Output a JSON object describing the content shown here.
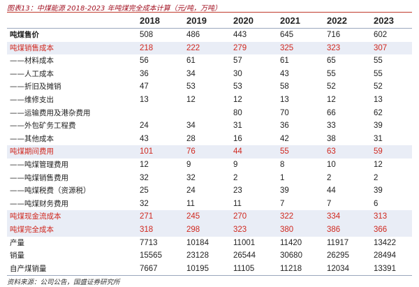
{
  "title": "图表13：中煤能源 2018-2023 年吨煤完全成本计算（元/吨，万吨）",
  "source": "资料来源：公司公告，国盛证券研究所",
  "header": {
    "label": "",
    "years": [
      "2018",
      "2019",
      "2020",
      "2021",
      "2022",
      "2023"
    ]
  },
  "rows": [
    {
      "label": "吨煤售价",
      "values": [
        "508",
        "486",
        "443",
        "645",
        "716",
        "602"
      ],
      "style": "bold"
    },
    {
      "label": "吨煤销售成本",
      "values": [
        "218",
        "222",
        "279",
        "325",
        "323",
        "307"
      ],
      "style": "red-shade"
    },
    {
      "label": "——材料成本",
      "values": [
        "56",
        "61",
        "57",
        "61",
        "65",
        "55"
      ],
      "style": "plain"
    },
    {
      "label": "——人工成本",
      "values": [
        "36",
        "34",
        "30",
        "43",
        "55",
        "55"
      ],
      "style": "plain"
    },
    {
      "label": "——折旧及摊销",
      "values": [
        "47",
        "53",
        "53",
        "58",
        "52",
        "52"
      ],
      "style": "plain"
    },
    {
      "label": "——维修支出",
      "values": [
        "13",
        "12",
        "12",
        "13",
        "12",
        "13"
      ],
      "style": "plain"
    },
    {
      "label": "——运输费用及港杂费用",
      "values": [
        "",
        "",
        "80",
        "70",
        "66",
        "62"
      ],
      "style": "plain"
    },
    {
      "label": "——外包矿务工程费",
      "values": [
        "24",
        "34",
        "31",
        "36",
        "33",
        "39"
      ],
      "style": "plain"
    },
    {
      "label": "——其他成本",
      "values": [
        "43",
        "28",
        "16",
        "42",
        "38",
        "31"
      ],
      "style": "plain"
    },
    {
      "label": "吨煤期间费用",
      "values": [
        "101",
        "76",
        "44",
        "55",
        "63",
        "59"
      ],
      "style": "red-shade"
    },
    {
      "label": "——吨煤管理费用",
      "values": [
        "12",
        "9",
        "9",
        "8",
        "10",
        "12"
      ],
      "style": "plain"
    },
    {
      "label": "——吨煤销售费用",
      "values": [
        "32",
        "32",
        "2",
        "1",
        "2",
        "2"
      ],
      "style": "plain"
    },
    {
      "label": "——吨煤税费（资源税）",
      "values": [
        "25",
        "24",
        "23",
        "39",
        "44",
        "39"
      ],
      "style": "plain"
    },
    {
      "label": "——吨煤财务费用",
      "values": [
        "32",
        "11",
        "11",
        "7",
        "7",
        "6"
      ],
      "style": "plain"
    },
    {
      "label": "吨煤现金流成本",
      "values": [
        "271",
        "245",
        "270",
        "322",
        "334",
        "313"
      ],
      "style": "red-shade"
    },
    {
      "label": "吨煤完全成本",
      "values": [
        "318",
        "298",
        "323",
        "380",
        "386",
        "366"
      ],
      "style": "red-shade"
    },
    {
      "label": "产量",
      "values": [
        "7713",
        "10184",
        "11001",
        "11420",
        "11917",
        "13422"
      ],
      "style": "plain"
    },
    {
      "label": "销量",
      "values": [
        "15565",
        "23128",
        "26544",
        "30680",
        "26295",
        "28494"
      ],
      "style": "plain"
    },
    {
      "label": "自产煤销量",
      "values": [
        "7667",
        "10195",
        "11105",
        "11218",
        "12034",
        "13391"
      ],
      "style": "plain"
    }
  ]
}
